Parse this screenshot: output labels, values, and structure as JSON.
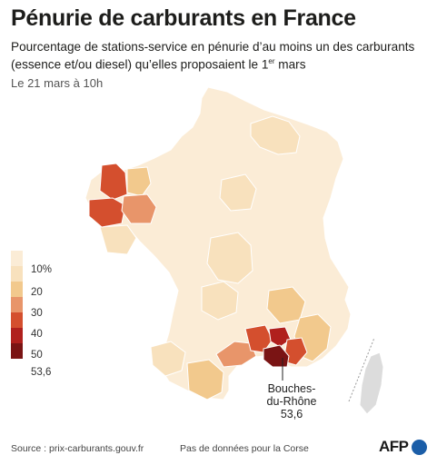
{
  "header": {
    "title": "Pénurie de carburants en France",
    "subtitle": "Pourcentage de stations-service en pénurie d’au moins un des carburants (essence et/ou diesel) qu’elles proposaient le 1",
    "subtitle_sup": "er",
    "subtitle_end": " mars",
    "date": "Le 21 mars à 10h"
  },
  "legend": {
    "items": [
      {
        "label": "",
        "color": "#fbecd6"
      },
      {
        "label": "10%",
        "color": "#f8e1bd"
      },
      {
        "label": "20",
        "color": "#f2c98d"
      },
      {
        "label": "30",
        "color": "#e8956a"
      },
      {
        "label": "40",
        "color": "#d44f2e"
      },
      {
        "label": "50",
        "color": "#b0201d"
      },
      {
        "label": "53,6",
        "color": "#7a1414"
      }
    ]
  },
  "callout": {
    "label": "Bouches-du-Rhône",
    "value": "53,6"
  },
  "footer": {
    "source": "Source : prix-carburants.gouv.fr",
    "note": "Pas de données pour la Corse",
    "logo_text": "AFP",
    "logo_color": "#1b5ea8"
  },
  "colors": {
    "base": "#fbecd6",
    "light": "#f8e1bd",
    "mid": "#f2c98d",
    "orange": "#e8956a",
    "red": "#d44f2e",
    "darkred": "#b0201d",
    "darkest": "#7a1414",
    "corsica": "#dcdcdc",
    "border": "#ffffff"
  }
}
